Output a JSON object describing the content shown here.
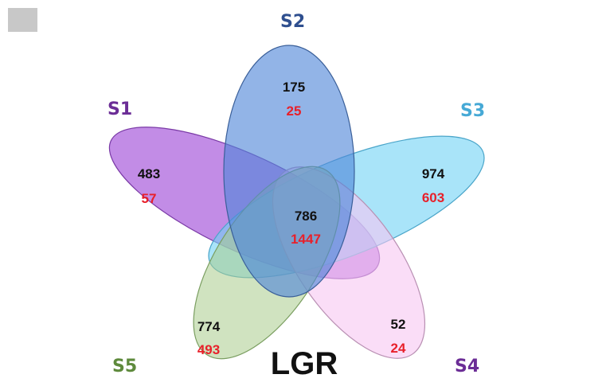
{
  "diagram": {
    "type": "venn-5",
    "title": "LGR",
    "sets": [
      {
        "id": "S1",
        "label": "S1",
        "color": "#a14fd8",
        "label_color": "#6b2d96"
      },
      {
        "id": "S2",
        "label": "S2",
        "color": "#4f86d8",
        "label_color": "#2f4f8f"
      },
      {
        "id": "S3",
        "label": "S3",
        "color": "#6fd2f5",
        "label_color": "#46a9d6"
      },
      {
        "id": "S4",
        "label": "S4",
        "color": "#f7c6f2",
        "label_color": "#6b2d96"
      },
      {
        "id": "S5",
        "label": "S5",
        "color": "#a9cc8c",
        "label_color": "#5e8a3c"
      }
    ],
    "counts": [
      {
        "region": "S1-only",
        "a": "483",
        "b": "57"
      },
      {
        "region": "S2-only",
        "a": "175",
        "b": "25"
      },
      {
        "region": "S3-only",
        "a": "974",
        "b": "603"
      },
      {
        "region": "S4-only",
        "a": "52",
        "b": "24"
      },
      {
        "region": "S5-only",
        "a": "774",
        "b": "493"
      },
      {
        "region": "all",
        "a": "786",
        "b": "1447"
      }
    ],
    "count_colors": {
      "a": "#111111",
      "b": "#e8202a"
    }
  }
}
